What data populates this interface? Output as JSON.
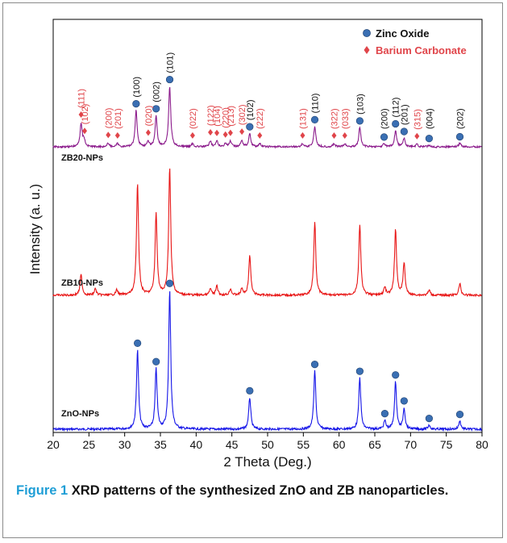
{
  "chart_data": {
    "type": "line",
    "xlabel": "2 Theta (Deg.)",
    "ylabel": "Intensity (a. u.)",
    "xlim": [
      20,
      80
    ],
    "x_ticks": [
      20,
      25,
      30,
      35,
      40,
      45,
      50,
      55,
      60,
      65,
      70,
      75,
      80
    ],
    "grid": false,
    "legend": [
      {
        "label": "Zinc Oxide",
        "marker": "circle",
        "color": "#3a6fb3"
      },
      {
        "label": "Barium Carbonate",
        "marker": "diamond",
        "color": "#e0454a"
      }
    ],
    "legend_position": "top-right",
    "series": [
      {
        "name": "ZnO-NPs",
        "color": "#1515e8",
        "peaks": [
          [
            31.8,
            0.57
          ],
          [
            34.4,
            0.43
          ],
          [
            36.3,
            1.0
          ],
          [
            47.5,
            0.23
          ],
          [
            56.6,
            0.42
          ],
          [
            62.9,
            0.37
          ],
          [
            66.4,
            0.06
          ],
          [
            67.9,
            0.34
          ],
          [
            69.1,
            0.15
          ],
          [
            72.6,
            0.03
          ],
          [
            76.9,
            0.06
          ]
        ]
      },
      {
        "name": "ZB10-NPs",
        "color": "#e81515",
        "peaks": [
          [
            23.9,
            0.16
          ],
          [
            25.9,
            0.05
          ],
          [
            28.9,
            0.04
          ],
          [
            31.8,
            0.87
          ],
          [
            34.4,
            0.64
          ],
          [
            36.3,
            1.0
          ],
          [
            42.0,
            0.05
          ],
          [
            42.9,
            0.07
          ],
          [
            44.8,
            0.05
          ],
          [
            46.4,
            0.05
          ],
          [
            47.5,
            0.31
          ],
          [
            56.6,
            0.58
          ],
          [
            62.9,
            0.55
          ],
          [
            66.4,
            0.06
          ],
          [
            67.9,
            0.51
          ],
          [
            69.1,
            0.25
          ],
          [
            72.6,
            0.04
          ],
          [
            76.9,
            0.09
          ]
        ]
      },
      {
        "name": "ZB20-NPs",
        "color": "#8b1a8b",
        "peaks": [
          [
            23.9,
            0.38
          ],
          [
            24.3,
            0.12
          ],
          [
            27.7,
            0.06
          ],
          [
            29.0,
            0.05
          ],
          [
            31.6,
            0.6
          ],
          [
            33.3,
            0.08
          ],
          [
            34.4,
            0.51
          ],
          [
            36.3,
            1.0
          ],
          [
            39.5,
            0.05
          ],
          [
            42.0,
            0.1
          ],
          [
            42.9,
            0.09
          ],
          [
            44.1,
            0.06
          ],
          [
            44.8,
            0.09
          ],
          [
            46.4,
            0.11
          ],
          [
            47.5,
            0.22
          ],
          [
            48.9,
            0.05
          ],
          [
            54.9,
            0.05
          ],
          [
            56.6,
            0.34
          ],
          [
            59.3,
            0.05
          ],
          [
            60.8,
            0.05
          ],
          [
            62.9,
            0.32
          ],
          [
            66.3,
            0.05
          ],
          [
            67.9,
            0.27
          ],
          [
            69.1,
            0.14
          ],
          [
            70.9,
            0.04
          ],
          [
            72.6,
            0.03
          ],
          [
            76.9,
            0.06
          ]
        ]
      }
    ],
    "zno_markers": [
      {
        "series": "ZnO-NPs",
        "x": [
          31.8,
          34.4,
          36.3,
          47.5,
          56.6,
          62.9,
          66.4,
          67.9,
          69.1,
          72.6,
          76.9
        ]
      },
      {
        "series": "ZB20-NPs",
        "x": [
          31.6,
          34.4,
          36.3,
          47.5,
          56.6,
          62.9,
          66.3,
          67.9,
          69.1,
          72.6,
          76.9
        ]
      }
    ],
    "zno_labels": [
      {
        "x": 31.6,
        "text": "(100)"
      },
      {
        "x": 34.4,
        "text": "(002)"
      },
      {
        "x": 36.3,
        "text": "(101)"
      },
      {
        "x": 47.5,
        "text": "(102)"
      },
      {
        "x": 56.6,
        "text": "(110)"
      },
      {
        "x": 62.9,
        "text": "(103)"
      },
      {
        "x": 66.3,
        "text": "(200)"
      },
      {
        "x": 67.9,
        "text": "(112)"
      },
      {
        "x": 69.1,
        "text": "(201)"
      },
      {
        "x": 72.6,
        "text": "(004)"
      },
      {
        "x": 76.9,
        "text": "(202)"
      }
    ],
    "baco3_labels": [
      {
        "x": 23.9,
        "text": "(111)"
      },
      {
        "x": 24.4,
        "text": "(102)"
      },
      {
        "x": 27.7,
        "text": "(200)"
      },
      {
        "x": 29.0,
        "text": "(201)"
      },
      {
        "x": 33.3,
        "text": "(020)"
      },
      {
        "x": 39.5,
        "text": "(022)"
      },
      {
        "x": 42.0,
        "text": "(122)"
      },
      {
        "x": 42.9,
        "text": "(104)"
      },
      {
        "x": 44.1,
        "text": "(220)"
      },
      {
        "x": 44.8,
        "text": "(213)"
      },
      {
        "x": 46.4,
        "text": "(302)"
      },
      {
        "x": 48.9,
        "text": "(222)"
      },
      {
        "x": 54.9,
        "text": "(131)"
      },
      {
        "x": 59.3,
        "text": "(322)"
      },
      {
        "x": 60.8,
        "text": "(033)"
      },
      {
        "x": 70.9,
        "text": "(315)"
      }
    ]
  },
  "caption": {
    "figure_label": "Figure 1",
    "text": "XRD patterns of the synthesized ZnO and ZB nanoparticles."
  }
}
